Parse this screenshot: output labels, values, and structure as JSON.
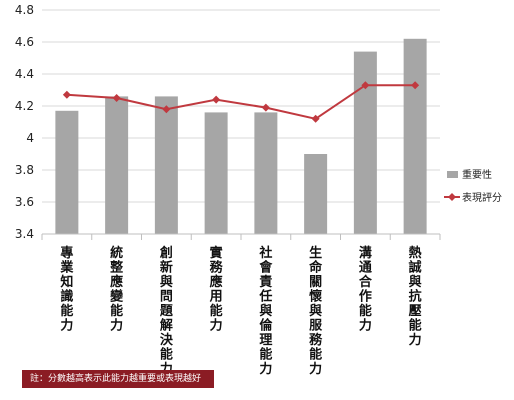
{
  "chart_data": {
    "type": "bar",
    "categories": [
      "專業知識能力",
      "統整應變能力",
      "創新與問題解決能力",
      "實務應用能力",
      "社會責任與倫理能力",
      "生命關懷與服務能力",
      "溝通合作能力",
      "熱誠與抗壓能力"
    ],
    "series": [
      {
        "name": "重要性",
        "type": "bar",
        "values": [
          4.17,
          4.26,
          4.26,
          4.16,
          4.16,
          3.9,
          4.54,
          4.62
        ]
      },
      {
        "name": "表現評分",
        "type": "line",
        "values": [
          4.27,
          4.25,
          4.18,
          4.24,
          4.19,
          4.12,
          4.33,
          4.33
        ]
      }
    ],
    "ylim": [
      3.4,
      4.8
    ],
    "yticks": [
      "3.4",
      "3.6",
      "3.8",
      "4",
      "4.2",
      "4.4",
      "4.6",
      "4.8"
    ],
    "grid": true,
    "legend": "right",
    "colors": {
      "bar": "#a6a6a6",
      "line": "#c0393f",
      "grid": "#d9d9d9",
      "note_bg": "#8b1c24"
    }
  },
  "note": "註：分數越高表示此能力越重要或表現越好"
}
